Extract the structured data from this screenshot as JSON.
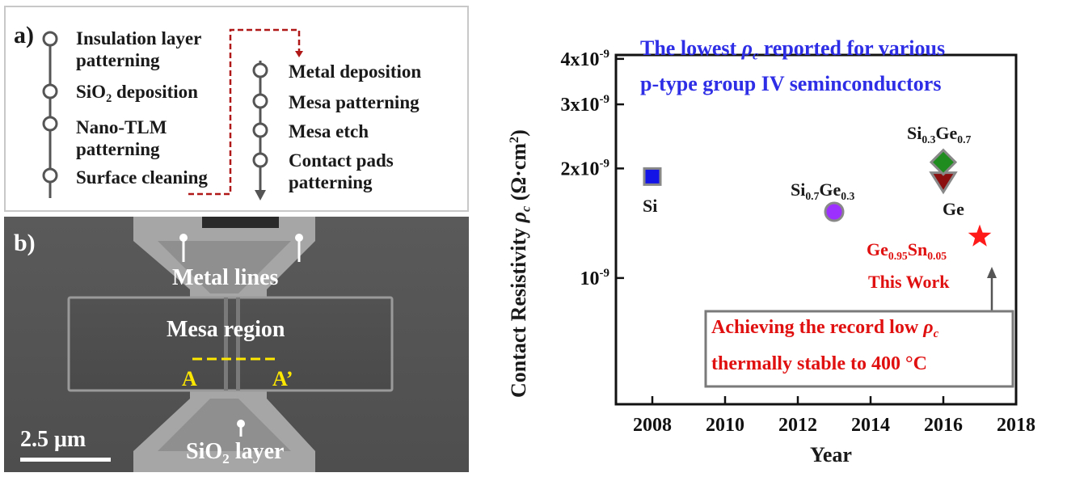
{
  "panel_a": {
    "label": "a)",
    "steps_left": [
      "Insulation layer patterning",
      "SiO2 deposition",
      "Nano-TLM patterning",
      "Surface cleaning"
    ],
    "steps_right": [
      "Metal deposition",
      "Mesa patterning",
      "Mesa etch",
      "Contact pads patterning"
    ]
  },
  "panel_b": {
    "label": "b)",
    "metal_lines": "Metal lines",
    "mesa_region": "Mesa region",
    "marker_a": "A",
    "marker_a_prime": "A’",
    "scale_bar": "2.5 μm",
    "sio2_layer": "SiO2 layer"
  },
  "colors": {
    "blue_title": "#2e2ee6",
    "red": "#e01010",
    "si": "#1414e6",
    "sige": "#9b30ff",
    "sige_high": "#1e8c1e",
    "ge": "#8b0f0f",
    "star": "#ff1a1a"
  },
  "chart_data": {
    "type": "scatter",
    "title": "The lowest ρc reported for various p-type group IV seminconductors",
    "xlabel": "Year",
    "ylabel": "Contact Resistivity ρc (Ω·cm2)",
    "xlim": [
      2007,
      2018
    ],
    "x_ticks": [
      2008,
      2010,
      2012,
      2014,
      2016,
      2018
    ],
    "y_scale": "log",
    "ylim": [
      4.5e-10,
      4.1e-09
    ],
    "y_ticks": [
      1e-09,
      2e-09,
      3e-09,
      4e-09
    ],
    "points": [
      {
        "label": "Si",
        "x": 2008,
        "y": 1.9e-09,
        "marker": "square",
        "color": "#1414e6"
      },
      {
        "label": "Si0.7Ge0.3",
        "x": 2013,
        "y": 1.52e-09,
        "marker": "circle",
        "color": "#9b30ff"
      },
      {
        "label": "Si0.3Ge0.7",
        "x": 2016,
        "y": 2.08e-09,
        "marker": "diamond",
        "color": "#1e8c1e"
      },
      {
        "label": "Ge",
        "x": 2016,
        "y": 1.85e-09,
        "marker": "triangle-down",
        "color": "#8b0f0f"
      },
      {
        "label": "Ge0.95Sn0.05",
        "x": 2017,
        "y": 1.3e-09,
        "marker": "star",
        "color": "#ff1a1a"
      }
    ],
    "annotations": [
      "This Work",
      "Achieving the record low ρc",
      "thermally stable to 400 °C"
    ],
    "grid": false,
    "legend": "none"
  }
}
